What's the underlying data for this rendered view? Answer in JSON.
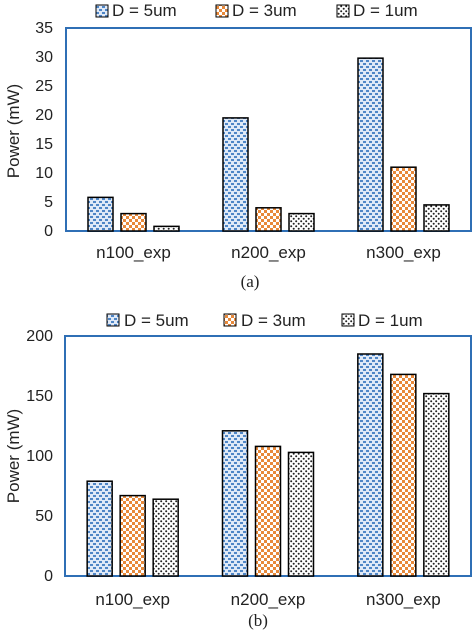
{
  "colors": {
    "d5": "#4f86c6",
    "d3": "#e8893a",
    "d1": "#333333"
  },
  "chart_data": [
    {
      "type": "bar",
      "caption": "(a)",
      "ylabel": "Power (mW)",
      "categories": [
        "n100_exp",
        "n200_exp",
        "n300_exp"
      ],
      "ylim": [
        0,
        35
      ],
      "yticks": [
        0,
        5,
        10,
        15,
        20,
        25,
        30,
        35
      ],
      "legend_position": "top",
      "grid": false,
      "series": [
        {
          "name": "D = 5um",
          "values": [
            5.8,
            19.5,
            29.8
          ]
        },
        {
          "name": "D = 3um",
          "values": [
            3.0,
            4.0,
            11.0
          ]
        },
        {
          "name": "D = 1um",
          "values": [
            0.8,
            3.0,
            4.5
          ]
        }
      ]
    },
    {
      "type": "bar",
      "caption": "(b)",
      "ylabel": "Power (mW)",
      "categories": [
        "n100_exp",
        "n200_exp",
        "n300_exp"
      ],
      "ylim": [
        0,
        200
      ],
      "yticks": [
        0,
        50,
        100,
        150,
        200
      ],
      "legend_position": "top",
      "grid": false,
      "series": [
        {
          "name": "D = 5um",
          "values": [
            79,
            121,
            185
          ]
        },
        {
          "name": "D = 3um",
          "values": [
            67,
            108,
            168
          ]
        },
        {
          "name": "D = 1um",
          "values": [
            64,
            103,
            152
          ]
        }
      ]
    }
  ]
}
